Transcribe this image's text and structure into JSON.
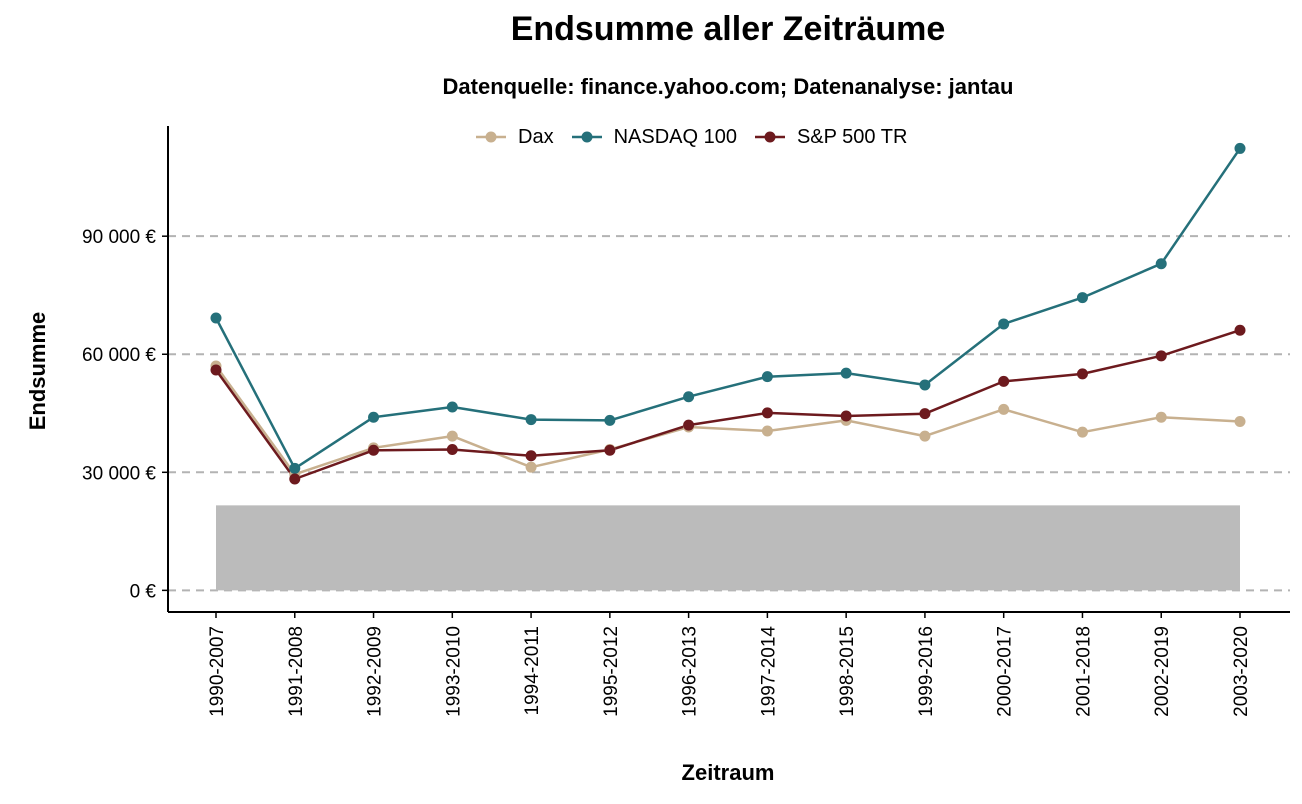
{
  "chart_data": {
    "type": "line",
    "title": "Endsumme aller Zeiträume",
    "subtitle": "Datenquelle: finance.yahoo.com; Datenanalyse: jantau",
    "xlabel": "Zeitraum",
    "ylabel": "Endsumme",
    "categories": [
      "1990-2007",
      "1991-2008",
      "1992-2009",
      "1993-2010",
      "1994-2011",
      "1995-2012",
      "1996-2013",
      "1997-2014",
      "1998-2015",
      "1999-2016",
      "2000-2017",
      "2001-2018",
      "2002-2019",
      "2003-2020"
    ],
    "ylim": [
      -5500,
      118000
    ],
    "yticks": [
      0,
      30000,
      60000,
      90000
    ],
    "ytick_labels": [
      "0 €",
      "30 000 €",
      "60 000 €",
      "90 000 €"
    ],
    "grid": "horizontal dashed",
    "legend_position": "top",
    "background_bar": {
      "value": 21600,
      "color": "#bbbbbb"
    },
    "series": [
      {
        "name": "Dax",
        "color": "#c8b08f",
        "values": [
          57000,
          29500,
          36200,
          39200,
          31300,
          35800,
          41500,
          40500,
          43200,
          39200,
          46000,
          40200,
          44000,
          42900
        ]
      },
      {
        "name": "NASDAQ 100",
        "color": "#25707a",
        "values": [
          69200,
          31000,
          44000,
          46600,
          43400,
          43200,
          49200,
          54300,
          55200,
          52200,
          67700,
          74400,
          83000,
          112300
        ]
      },
      {
        "name": "S&P 500 TR",
        "color": "#6d1a1e",
        "values": [
          56000,
          28300,
          35600,
          35800,
          34200,
          35600,
          42000,
          45100,
          44300,
          44900,
          53100,
          55000,
          59600,
          66100
        ]
      }
    ]
  }
}
